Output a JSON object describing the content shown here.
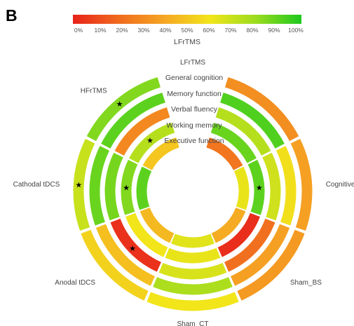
{
  "panel_label": "B",
  "chart_data": {
    "type": "radial-heatmap",
    "colorbar": {
      "title": "LFrTMS",
      "ticks": [
        "0%",
        "10%",
        "20%",
        "30%",
        "40%",
        "50%",
        "60%",
        "70%",
        "80%",
        "90%",
        "100%"
      ],
      "color_stops": [
        "#e8231a",
        "#f06a1e",
        "#f5a623",
        "#f2e51a",
        "#9bdc1e",
        "#1ec81e"
      ]
    },
    "outcomes": [
      "General cognition",
      "Memory function",
      "Verbal fluency",
      "Working memory",
      "Executive function"
    ],
    "treatments": [
      "LFrTMS",
      "Cognitive training",
      "Sham_BS",
      "Sham_CT",
      "Anodal tDCS",
      "Cathodal tDCS",
      "HFrTMS"
    ],
    "values_percent": {
      "LFrTMS": [
        32,
        92,
        74,
        88,
        24
      ],
      "Cognitive training": [
        38,
        58,
        68,
        90,
        62
      ],
      "Sham_BS": [
        36,
        38,
        22,
        3,
        42
      ],
      "Sham_CT": [
        60,
        76,
        66,
        62,
        64
      ],
      "Anodal tDCS": [
        54,
        48,
        4,
        60,
        46
      ],
      "Cathodal tDCS": [
        70,
        88,
        86,
        84,
        90
      ],
      "HFrTMS": [
        84,
        90,
        30,
        74,
        50
      ]
    },
    "best_marks": [
      {
        "treatment": "HFrTMS",
        "outcome": "General cognition"
      },
      {
        "treatment": "HFrTMS",
        "outcome": "Working memory"
      },
      {
        "treatment": "Cathodal tDCS",
        "outcome": "General cognition"
      },
      {
        "treatment": "Cathodal tDCS",
        "outcome": "Working memory"
      },
      {
        "treatment": "Anodal tDCS",
        "outcome": "Verbal fluency"
      },
      {
        "treatment": "Cognitive training",
        "outcome": "Working memory"
      }
    ],
    "best_mark_symbol": "★"
  }
}
